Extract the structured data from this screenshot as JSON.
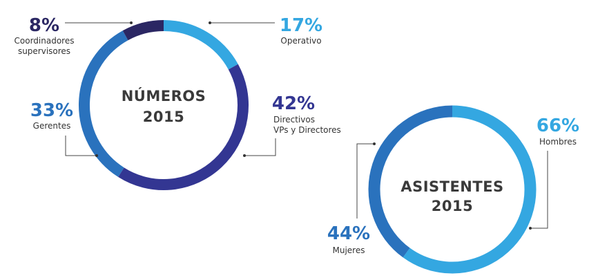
{
  "chart_data": [
    {
      "type": "pie",
      "variant": "donut",
      "title": "NÚMEROS 2015",
      "title_lines": [
        "NÚMEROS",
        "2015"
      ],
      "slices": [
        {
          "label_lines": [
            "Operativo"
          ],
          "value": 17,
          "value_label": "17%",
          "color": "#34a7e1"
        },
        {
          "label_lines": [
            "Directivos",
            "VPs y Directores"
          ],
          "value": 42,
          "value_label": "42%",
          "color": "#333692"
        },
        {
          "label_lines": [
            "Gerentes"
          ],
          "value": 33,
          "value_label": "33%",
          "color": "#2a72bd"
        },
        {
          "label_lines": [
            "Coordinadores",
            "supervisores"
          ],
          "value": 8,
          "value_label": "8%",
          "color": "#2b2763"
        }
      ]
    },
    {
      "type": "pie",
      "variant": "donut",
      "title": "ASISTENTES 2015",
      "title_lines": [
        "ASISTENTES",
        "2015"
      ],
      "slices": [
        {
          "label_lines": [
            "Hombres"
          ],
          "value": 66,
          "value_label": "66%",
          "color": "#34a7e1"
        },
        {
          "label_lines": [
            "Mujeres"
          ],
          "value": 44,
          "value_label": "44%",
          "color": "#2a72bd"
        }
      ]
    }
  ]
}
